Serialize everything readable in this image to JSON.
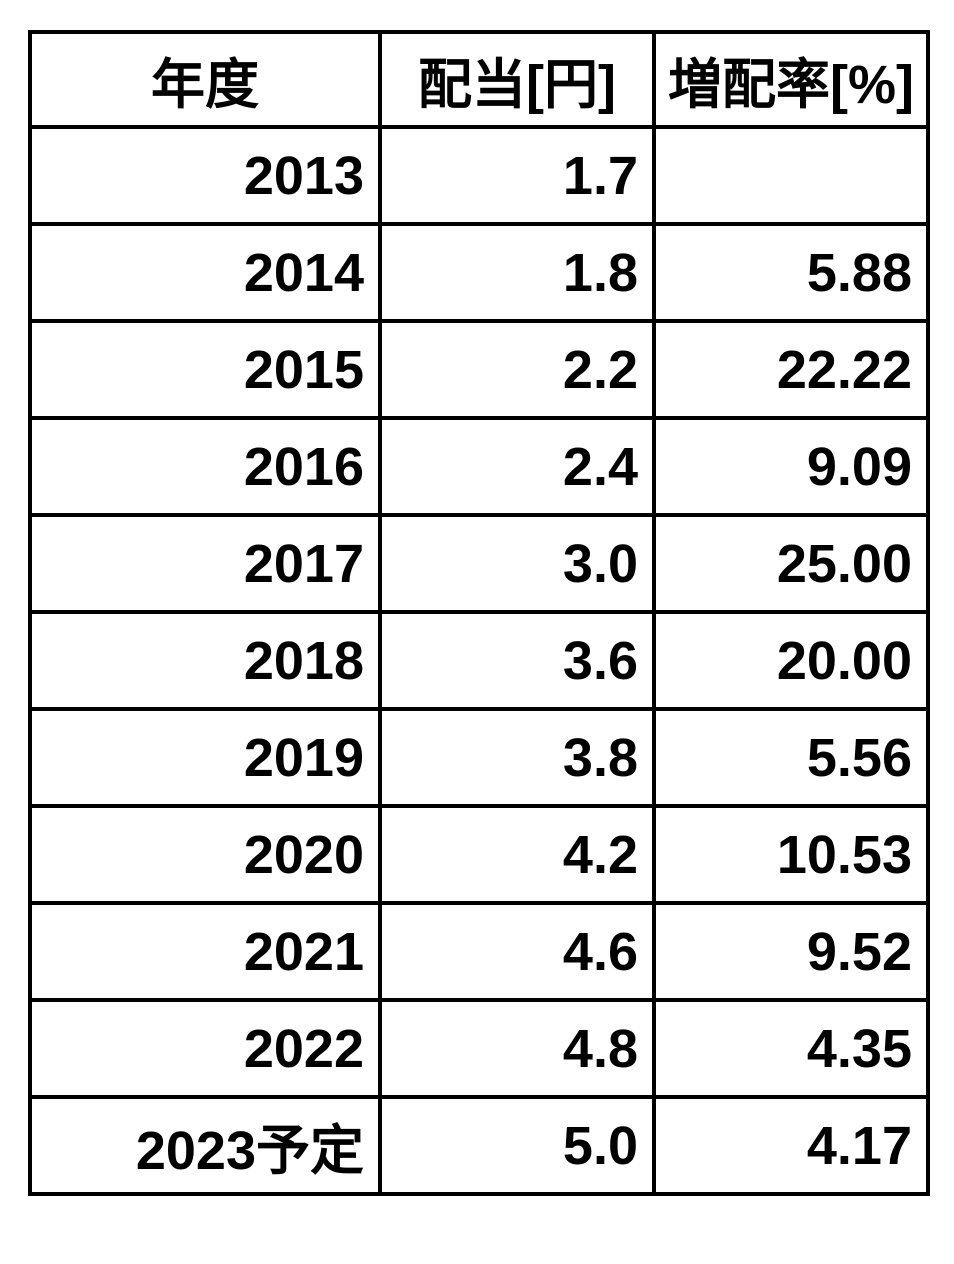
{
  "colors": {
    "background": "#ffffff",
    "border": "#000000",
    "text": "#000000"
  },
  "chart_data": {
    "type": "table",
    "columns": [
      "年度",
      "配当[円]",
      "増配率[%]"
    ],
    "rows": [
      [
        "2013",
        "1.7",
        ""
      ],
      [
        "2014",
        "1.8",
        "5.88"
      ],
      [
        "2015",
        "2.2",
        "22.22"
      ],
      [
        "2016",
        "2.4",
        "9.09"
      ],
      [
        "2017",
        "3.0",
        "25.00"
      ],
      [
        "2018",
        "3.6",
        "20.00"
      ],
      [
        "2019",
        "3.8",
        "5.56"
      ],
      [
        "2020",
        "4.2",
        "10.53"
      ],
      [
        "2021",
        "4.6",
        "9.52"
      ],
      [
        "2022",
        "4.8",
        "4.35"
      ],
      [
        "2023予定",
        "5.0",
        "4.17"
      ]
    ],
    "layout": {
      "header_align": "center",
      "cell_align": "right",
      "grid": true
    }
  }
}
